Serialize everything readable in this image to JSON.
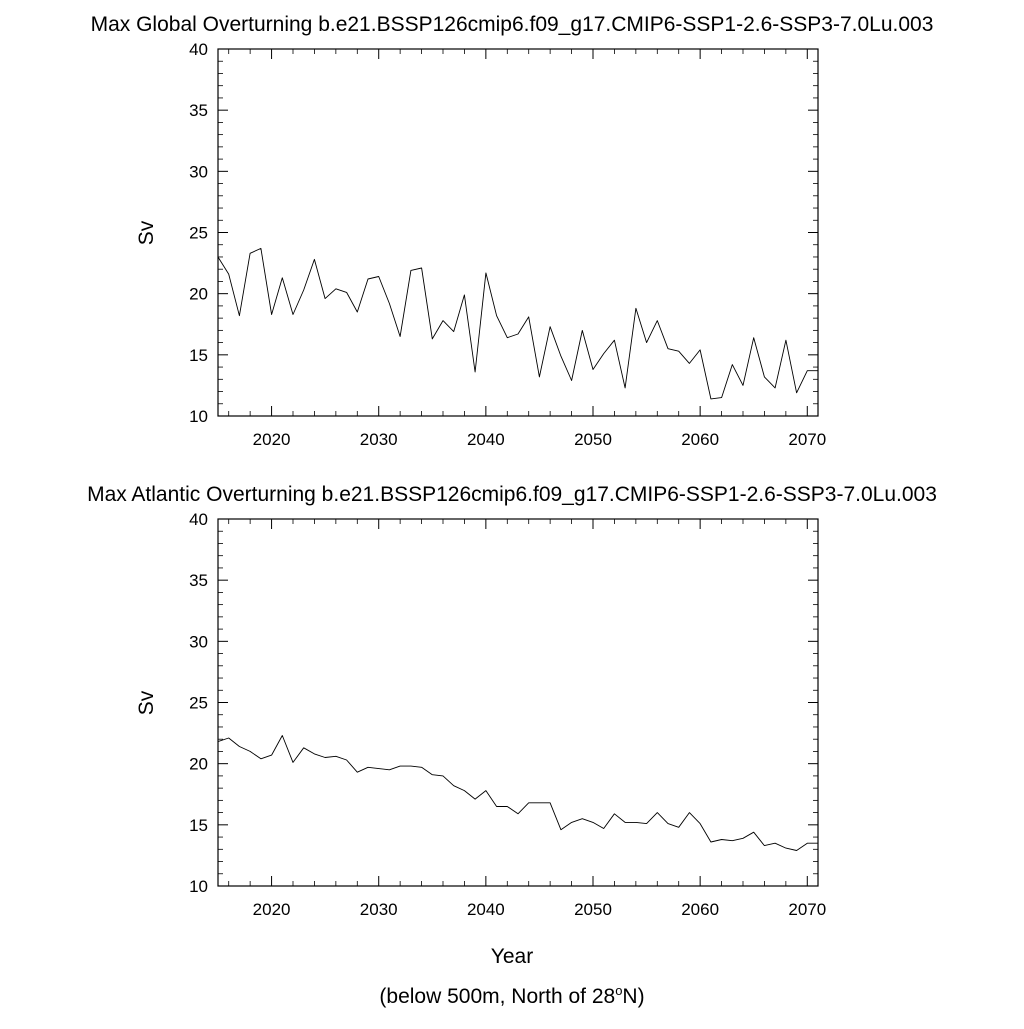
{
  "chart_data": [
    {
      "type": "line",
      "title": "Max Global Overturning b.e21.BSSP126cmip6.f09_g17.CMIP6-SSP1-2.6-SSP3-7.0Lu.003",
      "xlabel": "",
      "ylabel": "Sv",
      "xlim": [
        2015,
        2071
      ],
      "ylim": [
        10,
        40
      ],
      "xticks": [
        "2020",
        "2030",
        "2040",
        "2050",
        "2060",
        "2070"
      ],
      "yticks": [
        "10",
        "15",
        "20",
        "25",
        "30",
        "35",
        "40"
      ],
      "grid": false,
      "series": [
        {
          "x": [
            2015,
            2016,
            2017,
            2018,
            2019,
            2020,
            2021,
            2022,
            2023,
            2024,
            2025,
            2026,
            2027,
            2028,
            2029,
            2030,
            2031,
            2032,
            2033,
            2034,
            2035,
            2036,
            2037,
            2038,
            2039,
            2040,
            2041,
            2042,
            2043,
            2044,
            2045,
            2046,
            2047,
            2048,
            2049,
            2050,
            2051,
            2052,
            2053,
            2054,
            2055,
            2056,
            2057,
            2058,
            2059,
            2060,
            2061,
            2062,
            2063,
            2064,
            2065,
            2066,
            2067,
            2068,
            2069,
            2070,
            2071
          ],
          "values": [
            23.0,
            21.6,
            18.2,
            23.3,
            23.7,
            18.3,
            21.3,
            18.3,
            20.3,
            22.8,
            19.6,
            20.4,
            20.1,
            18.5,
            21.2,
            21.4,
            19.2,
            16.5,
            21.9,
            22.1,
            16.3,
            17.8,
            16.9,
            19.9,
            13.6,
            21.7,
            18.2,
            16.4,
            16.7,
            18.1,
            13.2,
            17.3,
            14.9,
            12.9,
            17.0,
            13.8,
            15.1,
            16.2,
            12.3,
            18.8,
            16.0,
            17.8,
            15.5,
            15.3,
            14.3,
            15.4,
            11.4,
            11.5,
            14.2,
            12.5,
            16.4,
            13.2,
            12.3,
            16.2,
            11.9,
            13.7,
            13.7
          ]
        }
      ]
    },
    {
      "type": "line",
      "title": "Max Atlantic Overturning b.e21.BSSP126cmip6.f09_g17.CMIP6-SSP1-2.6-SSP3-7.0Lu.003",
      "xlabel": "Year",
      "ylabel": "Sv",
      "xlim": [
        2015,
        2071
      ],
      "ylim": [
        10,
        40
      ],
      "xticks": [
        "2020",
        "2030",
        "2040",
        "2050",
        "2060",
        "2070"
      ],
      "yticks": [
        "10",
        "15",
        "20",
        "25",
        "30",
        "35",
        "40"
      ],
      "grid": false,
      "series": [
        {
          "x": [
            2015,
            2016,
            2017,
            2018,
            2019,
            2020,
            2021,
            2022,
            2023,
            2024,
            2025,
            2026,
            2027,
            2028,
            2029,
            2030,
            2031,
            2032,
            2033,
            2034,
            2035,
            2036,
            2037,
            2038,
            2039,
            2040,
            2041,
            2042,
            2043,
            2044,
            2045,
            2046,
            2047,
            2048,
            2049,
            2050,
            2051,
            2052,
            2053,
            2054,
            2055,
            2056,
            2057,
            2058,
            2059,
            2060,
            2061,
            2062,
            2063,
            2064,
            2065,
            2066,
            2067,
            2068,
            2069,
            2070,
            2071
          ],
          "values": [
            21.8,
            22.1,
            21.4,
            21.0,
            20.4,
            20.7,
            22.3,
            20.1,
            21.3,
            20.8,
            20.5,
            20.6,
            20.3,
            19.3,
            19.7,
            19.6,
            19.5,
            19.8,
            19.8,
            19.7,
            19.1,
            19.0,
            18.2,
            17.8,
            17.1,
            17.8,
            16.5,
            16.5,
            15.9,
            16.8,
            16.8,
            16.8,
            14.6,
            15.2,
            15.5,
            15.2,
            14.7,
            15.9,
            15.2,
            15.2,
            15.1,
            16.0,
            15.1,
            14.8,
            16.0,
            15.1,
            13.6,
            13.8,
            13.7,
            13.9,
            14.4,
            13.3,
            13.5,
            13.1,
            12.9,
            13.5,
            13.5
          ]
        }
      ]
    }
  ],
  "footnote": {
    "prefix": "(below 500m, North of 28",
    "superscript": "o",
    "suffix": "N)"
  },
  "colors": {
    "line": "#000000",
    "frame": "#000000",
    "background": "#ffffff"
  }
}
